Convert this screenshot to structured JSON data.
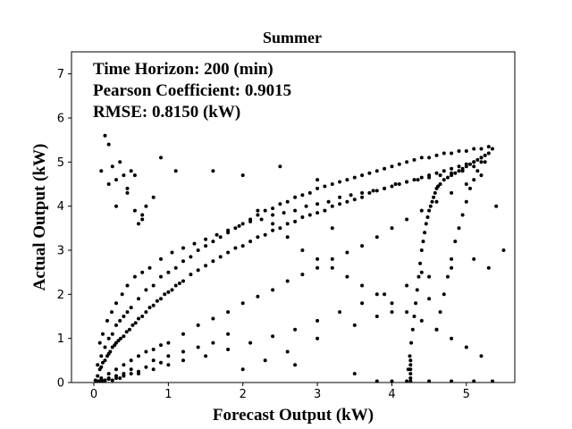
{
  "chart_data": {
    "type": "scatter",
    "title": "Summer",
    "xlabel": "Forecast Output (kW)",
    "ylabel": "Actual Output (kW)",
    "xlim": [
      -0.3,
      5.65
    ],
    "ylim": [
      0,
      7.5
    ],
    "xticks": [
      "0",
      "1",
      "2",
      "3",
      "4",
      "5"
    ],
    "yticks": [
      "0",
      "1",
      "2",
      "3",
      "4",
      "5",
      "6",
      "7"
    ],
    "grid": false,
    "legend": "none",
    "point_color": "#000000",
    "annotations": [
      "Time Horizon: 200 (min)",
      "Pearson Coefficient: 0.9015",
      "RMSE: 0.8150 (kW)"
    ],
    "series": [
      {
        "x": [
          0.02,
          0.05,
          0.08,
          0.1,
          0.12,
          0.15,
          0.18,
          0.2,
          0.22,
          0.25,
          0.28,
          0.3,
          0.33,
          0.36,
          0.4,
          0.44,
          0.48,
          0.52,
          0.56,
          0.6,
          0.65,
          0.7,
          0.75,
          0.8,
          0.85,
          0.9,
          0.95,
          1.0,
          1.05,
          1.1,
          1.15,
          1.2,
          1.3,
          1.4,
          1.5,
          1.6,
          1.7,
          1.8,
          1.9,
          2.0,
          2.1,
          2.2,
          2.3,
          2.4,
          2.5,
          2.6,
          2.7,
          2.8,
          2.9,
          3.0,
          3.1,
          3.2,
          3.3,
          3.4,
          3.5,
          3.6,
          3.7,
          3.8,
          3.9,
          4.0,
          4.1,
          4.2,
          4.3,
          4.4,
          4.5,
          4.6,
          4.7,
          4.8,
          4.9,
          5.0,
          5.1,
          5.2,
          5.3,
          5.35,
          0.05,
          0.1,
          0.15,
          0.2,
          0.25,
          0.3,
          0.35,
          0.4,
          0.45,
          0.5,
          0.6,
          0.7,
          0.8,
          0.9,
          1.0,
          1.1,
          1.2,
          1.3,
          1.4,
          1.5,
          1.6,
          1.7,
          1.8,
          1.9,
          2.0,
          2.1,
          2.2,
          2.3,
          2.4,
          2.5,
          2.6,
          2.7,
          2.8,
          2.9,
          3.0,
          3.1,
          3.2,
          3.3,
          3.4,
          3.5,
          3.6,
          3.7,
          3.8,
          3.9,
          4.0,
          4.1,
          4.2,
          4.3,
          4.4,
          4.5,
          4.6,
          4.7,
          4.8,
          4.9,
          5.0,
          5.1,
          5.2,
          5.3,
          0.1,
          0.2,
          0.3,
          0.4,
          0.5,
          0.6,
          0.7,
          0.8,
          0.9,
          1.0,
          1.2,
          1.4,
          1.6,
          1.8,
          2.0,
          2.2,
          2.4,
          2.6,
          2.8,
          3.0,
          3.2,
          3.4,
          3.6,
          3.8,
          4.0,
          4.2,
          4.4,
          4.6,
          4.8,
          5.0,
          5.2,
          0.08,
          0.12,
          0.18,
          0.24,
          0.3,
          0.38,
          0.45,
          0.55,
          0.65,
          0.75,
          0.9,
          1.05,
          1.2,
          1.35,
          1.5,
          1.65,
          1.8,
          1.95,
          2.1,
          2.25,
          2.4,
          2.55,
          2.7,
          2.85,
          3.0,
          3.15,
          3.3,
          3.45,
          3.6,
          3.75,
          3.9,
          4.05,
          4.2,
          4.35,
          4.5,
          4.65,
          4.8,
          4.95,
          5.1,
          5.25,
          0.05,
          0.1,
          0.15,
          0.2,
          0.3,
          0.4,
          0.5,
          0.6,
          0.8,
          1.0,
          1.2,
          1.5,
          1.8,
          2.1,
          2.4,
          2.7,
          3.0,
          3.3,
          3.6,
          3.9,
          4.2,
          4.5,
          4.8,
          5.1,
          0.03,
          0.05,
          0.08,
          0.1,
          0.12,
          0.15,
          0.2,
          0.25,
          0.3,
          0.35,
          0.4,
          0.5,
          0.6,
          0.7,
          0.8,
          0.9,
          1.0,
          1.2,
          1.4,
          1.6,
          1.8,
          2.0,
          2.3,
          2.6,
          3.0,
          3.5,
          4.0,
          4.5,
          0.1,
          0.15,
          0.2,
          0.25,
          0.3,
          0.35,
          0.4,
          0.45,
          0.5,
          0.55,
          0.6,
          0.65,
          0.7,
          0.2,
          0.3,
          0.45,
          0.55,
          0.65,
          0.8,
          4.2,
          4.22,
          4.24,
          4.26,
          4.28,
          4.3,
          4.32,
          4.34,
          4.36,
          4.38,
          4.4,
          4.42,
          4.44,
          4.46,
          4.48,
          4.5,
          4.52,
          4.54,
          4.56,
          4.58,
          4.6,
          4.62,
          4.65,
          4.7,
          4.75,
          4.8,
          4.85,
          4.9,
          4.95,
          5.0,
          5.05,
          5.1,
          5.15,
          5.2,
          5.25,
          4.6,
          4.65,
          4.7,
          4.75,
          4.8,
          4.85,
          4.9,
          4.95,
          5.0,
          5.05,
          5.1,
          5.15,
          5.2,
          4.25,
          4.25,
          4.25,
          4.25,
          4.25,
          4.25,
          4.5,
          4.8,
          5.1,
          5.35,
          4.0,
          3.8,
          2.2,
          2.4,
          2.6,
          2.8,
          3.0,
          3.2,
          3.4,
          3.6,
          3.8,
          4.0,
          4.2,
          4.4,
          4.6,
          4.8,
          5.0,
          5.2,
          1.6,
          2.0,
          2.5,
          3.0,
          3.2,
          3.8,
          4.4,
          5.4,
          5.5,
          5.3,
          0.9,
          1.1,
          3.5,
          2.7
        ],
        "y": [
          0.05,
          0.15,
          0.3,
          0.35,
          0.45,
          0.5,
          0.6,
          0.65,
          0.7,
          0.8,
          0.85,
          0.9,
          0.95,
          1.0,
          1.05,
          1.15,
          1.2,
          1.3,
          1.35,
          1.45,
          1.5,
          1.6,
          1.7,
          1.75,
          1.85,
          1.9,
          2.0,
          2.05,
          2.1,
          2.2,
          2.25,
          2.3,
          2.45,
          2.55,
          2.65,
          2.75,
          2.85,
          2.95,
          3.05,
          3.1,
          3.2,
          3.3,
          3.35,
          3.45,
          3.5,
          3.6,
          3.65,
          3.75,
          3.8,
          3.85,
          3.9,
          4.0,
          4.05,
          4.1,
          4.15,
          4.2,
          4.3,
          4.35,
          4.4,
          4.45,
          4.5,
          4.55,
          4.6,
          4.65,
          4.7,
          4.75,
          4.8,
          4.85,
          4.9,
          4.95,
          5.0,
          5.1,
          5.2,
          5.3,
          0.4,
          0.6,
          0.8,
          1.0,
          1.1,
          1.3,
          1.4,
          1.5,
          1.6,
          1.7,
          1.9,
          2.1,
          2.2,
          2.4,
          2.5,
          2.6,
          2.75,
          2.85,
          3.0,
          3.1,
          3.2,
          3.3,
          3.4,
          3.5,
          3.6,
          3.7,
          3.8,
          3.9,
          3.95,
          4.05,
          4.1,
          4.2,
          4.25,
          4.3,
          4.4,
          4.45,
          4.5,
          4.55,
          4.6,
          4.65,
          4.7,
          4.75,
          4.8,
          4.85,
          4.9,
          4.95,
          5.0,
          5.05,
          5.1,
          5.1,
          5.15,
          5.2,
          5.2,
          5.25,
          5.25,
          5.3,
          5.3,
          5.35,
          0.1,
          0.2,
          0.3,
          0.4,
          0.5,
          0.6,
          0.7,
          0.75,
          0.85,
          0.9,
          1.1,
          1.3,
          1.45,
          1.6,
          1.8,
          1.95,
          2.1,
          2.3,
          2.45,
          2.6,
          2.8,
          2.95,
          3.1,
          3.3,
          3.5,
          3.7,
          3.9,
          4.1,
          4.3,
          4.5,
          4.7,
          0.9,
          1.1,
          1.4,
          1.6,
          1.8,
          2.0,
          2.2,
          2.4,
          2.5,
          2.6,
          2.8,
          2.95,
          3.05,
          3.15,
          3.25,
          3.35,
          3.45,
          3.55,
          3.65,
          3.7,
          3.8,
          3.85,
          3.9,
          4.0,
          4.05,
          4.1,
          4.2,
          4.25,
          4.3,
          4.35,
          4.4,
          4.5,
          4.55,
          4.6,
          4.65,
          4.7,
          4.75,
          4.8,
          4.9,
          5.0,
          0.0,
          0.02,
          0.05,
          0.08,
          0.1,
          0.15,
          0.2,
          0.25,
          0.3,
          0.4,
          0.5,
          0.6,
          0.75,
          0.9,
          1.05,
          1.2,
          1.4,
          1.6,
          1.8,
          2.0,
          2.2,
          2.4,
          2.6,
          2.8,
          0.0,
          0.0,
          0.0,
          0.0,
          0.0,
          0.05,
          0.1,
          0.05,
          0.15,
          0.1,
          0.2,
          0.3,
          0.2,
          0.35,
          0.5,
          0.45,
          0.6,
          0.7,
          0.8,
          0.9,
          1.1,
          0.3,
          0.5,
          0.7,
          1.0,
          1.3,
          1.6,
          1.9,
          4.8,
          5.6,
          5.4,
          4.9,
          4.6,
          5.0,
          4.7,
          4.3,
          4.8,
          3.9,
          3.6,
          3.8,
          4.0,
          4.5,
          4.0,
          4.4,
          4.7,
          3.7,
          4.2,
          0.0,
          0.3,
          0.6,
          0.9,
          1.2,
          1.5,
          1.8,
          2.1,
          2.4,
          2.7,
          3.0,
          3.2,
          3.4,
          3.6,
          3.75,
          3.9,
          4.0,
          4.1,
          4.2,
          4.3,
          4.4,
          4.45,
          4.5,
          4.6,
          4.65,
          4.7,
          4.75,
          4.8,
          4.85,
          4.9,
          4.95,
          5.0,
          5.05,
          5.1,
          5.15,
          1.2,
          1.6,
          2.0,
          2.4,
          2.8,
          3.2,
          3.5,
          3.8,
          4.1,
          4.4,
          4.6,
          4.8,
          5.0,
          0.0,
          0.1,
          0.2,
          0.3,
          0.4,
          0.5,
          0.0,
          0.0,
          0.0,
          0.0,
          0.0,
          0.0,
          3.9,
          3.6,
          3.3,
          3.0,
          2.8,
          2.6,
          2.4,
          2.2,
          2.0,
          1.8,
          1.6,
          1.4,
          1.2,
          1.0,
          0.8,
          0.6,
          4.8,
          4.7,
          4.9,
          4.6,
          3.5,
          1.5,
          2.5,
          4.0,
          3.0,
          2.6,
          5.1,
          4.8,
          0.2,
          0.4
        ]
      }
    ]
  }
}
